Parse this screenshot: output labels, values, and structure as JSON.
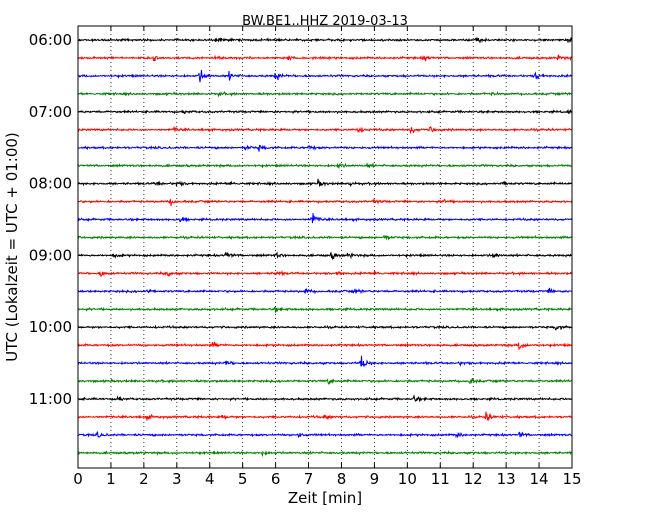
{
  "chart_data": {
    "type": "line",
    "title": "BW.BE1..HHZ 2019-03-13",
    "xlabel": "Zeit  [min]",
    "ylabel": "UTC (Lokalzeit = UTC + 01:00)",
    "xlim": [
      0,
      15
    ],
    "x_ticks": [
      "0",
      "1",
      "2",
      "3",
      "4",
      "5",
      "6",
      "7",
      "8",
      "9",
      "10",
      "11",
      "12",
      "13",
      "14",
      "15"
    ],
    "y_tick_labels": [
      "06:00",
      "07:00",
      "08:00",
      "09:00",
      "10:00",
      "11:00"
    ],
    "grid": "vertical dotted",
    "colors": [
      "#000000",
      "#ff0000",
      "#0000ff",
      "#008000"
    ],
    "traces": [
      {
        "start": "06:00",
        "color": "#000000",
        "events": [
          [
            4.2,
            0.25
          ],
          [
            12.1,
            0.45
          ],
          [
            14.9,
            0.3
          ]
        ]
      },
      {
        "start": "06:15",
        "color": "#ff0000",
        "events": [
          [
            2.3,
            0.35
          ],
          [
            4.2,
            0.2
          ],
          [
            6.4,
            0.25
          ],
          [
            10.5,
            0.35
          ],
          [
            14.6,
            0.3
          ]
        ]
      },
      {
        "start": "06:30",
        "color": "#0000ff",
        "events": [
          [
            3.7,
            0.9
          ],
          [
            4.6,
            0.5
          ],
          [
            6.0,
            0.55
          ],
          [
            13.9,
            0.4
          ]
        ]
      },
      {
        "start": "06:45",
        "color": "#008000",
        "events": [
          [
            4.3,
            0.2
          ],
          [
            12.6,
            0.15
          ]
        ]
      },
      {
        "start": "07:00",
        "color": "#000000",
        "events": [
          [
            3.2,
            0.2
          ],
          [
            14.9,
            0.3
          ]
        ]
      },
      {
        "start": "07:15",
        "color": "#ff0000",
        "events": [
          [
            2.9,
            0.3
          ],
          [
            8.5,
            0.45
          ],
          [
            10.1,
            0.4
          ],
          [
            10.7,
            0.3
          ]
        ]
      },
      {
        "start": "07:30",
        "color": "#0000ff",
        "events": [
          [
            5.1,
            0.3
          ],
          [
            5.5,
            0.35
          ],
          [
            7.0,
            0.3
          ]
        ]
      },
      {
        "start": "07:45",
        "color": "#008000",
        "events": [
          [
            7.9,
            0.35
          ],
          [
            8.8,
            0.25
          ]
        ]
      },
      {
        "start": "08:00",
        "color": "#000000",
        "events": [
          [
            2.4,
            0.3
          ],
          [
            3.0,
            0.3
          ],
          [
            4.6,
            0.25
          ],
          [
            7.3,
            0.4
          ],
          [
            8.2,
            0.3
          ],
          [
            12.9,
            0.3
          ]
        ]
      },
      {
        "start": "08:15",
        "color": "#ff0000",
        "events": [
          [
            2.8,
            0.35
          ],
          [
            9.0,
            0.2
          ],
          [
            11.1,
            0.25
          ]
        ]
      },
      {
        "start": "08:30",
        "color": "#0000ff",
        "events": [
          [
            3.1,
            0.3
          ],
          [
            7.1,
            1.0
          ]
        ]
      },
      {
        "start": "08:45",
        "color": "#008000",
        "events": [
          [
            9.3,
            0.3
          ]
        ]
      },
      {
        "start": "09:00",
        "color": "#000000",
        "events": [
          [
            1.1,
            0.3
          ],
          [
            4.5,
            0.5
          ],
          [
            6.0,
            0.3
          ],
          [
            7.7,
            0.4
          ],
          [
            8.2,
            0.3
          ],
          [
            12.6,
            0.3
          ]
        ]
      },
      {
        "start": "09:15",
        "color": "#ff0000",
        "events": [
          [
            0.7,
            0.35
          ],
          [
            2.7,
            0.5
          ],
          [
            6.0,
            0.3
          ],
          [
            7.9,
            0.3
          ],
          [
            9.0,
            0.3
          ]
        ]
      },
      {
        "start": "09:30",
        "color": "#0000ff",
        "events": [
          [
            2.1,
            0.3
          ],
          [
            6.9,
            0.35
          ],
          [
            8.4,
            0.3
          ],
          [
            14.3,
            0.3
          ]
        ]
      },
      {
        "start": "09:45",
        "color": "#008000",
        "events": [
          [
            6.0,
            0.3
          ]
        ]
      },
      {
        "start": "10:00",
        "color": "#000000",
        "events": [
          [
            14.5,
            0.35
          ]
        ]
      },
      {
        "start": "10:15",
        "color": "#ff0000",
        "events": [
          [
            4.1,
            0.35
          ],
          [
            13.4,
            0.75
          ]
        ]
      },
      {
        "start": "10:30",
        "color": "#0000ff",
        "events": [
          [
            4.5,
            0.3
          ],
          [
            8.6,
            1.0
          ],
          [
            11.6,
            0.2
          ]
        ]
      },
      {
        "start": "10:45",
        "color": "#008000",
        "events": [
          [
            7.6,
            0.3
          ],
          [
            11.9,
            0.45
          ]
        ]
      },
      {
        "start": "11:00",
        "color": "#000000",
        "events": [
          [
            1.2,
            0.3
          ],
          [
            10.2,
            0.35
          ]
        ]
      },
      {
        "start": "11:15",
        "color": "#ff0000",
        "events": [
          [
            2.1,
            0.3
          ],
          [
            4.4,
            0.25
          ],
          [
            7.5,
            0.25
          ],
          [
            12.4,
            0.65
          ]
        ]
      },
      {
        "start": "11:30",
        "color": "#0000ff",
        "events": [
          [
            0.6,
            0.35
          ],
          [
            6.7,
            0.25
          ],
          [
            11.5,
            0.3
          ],
          [
            13.4,
            0.35
          ]
        ]
      },
      {
        "start": "11:45",
        "color": "#008000",
        "events": [
          [
            5.6,
            0.3
          ]
        ]
      }
    ]
  }
}
